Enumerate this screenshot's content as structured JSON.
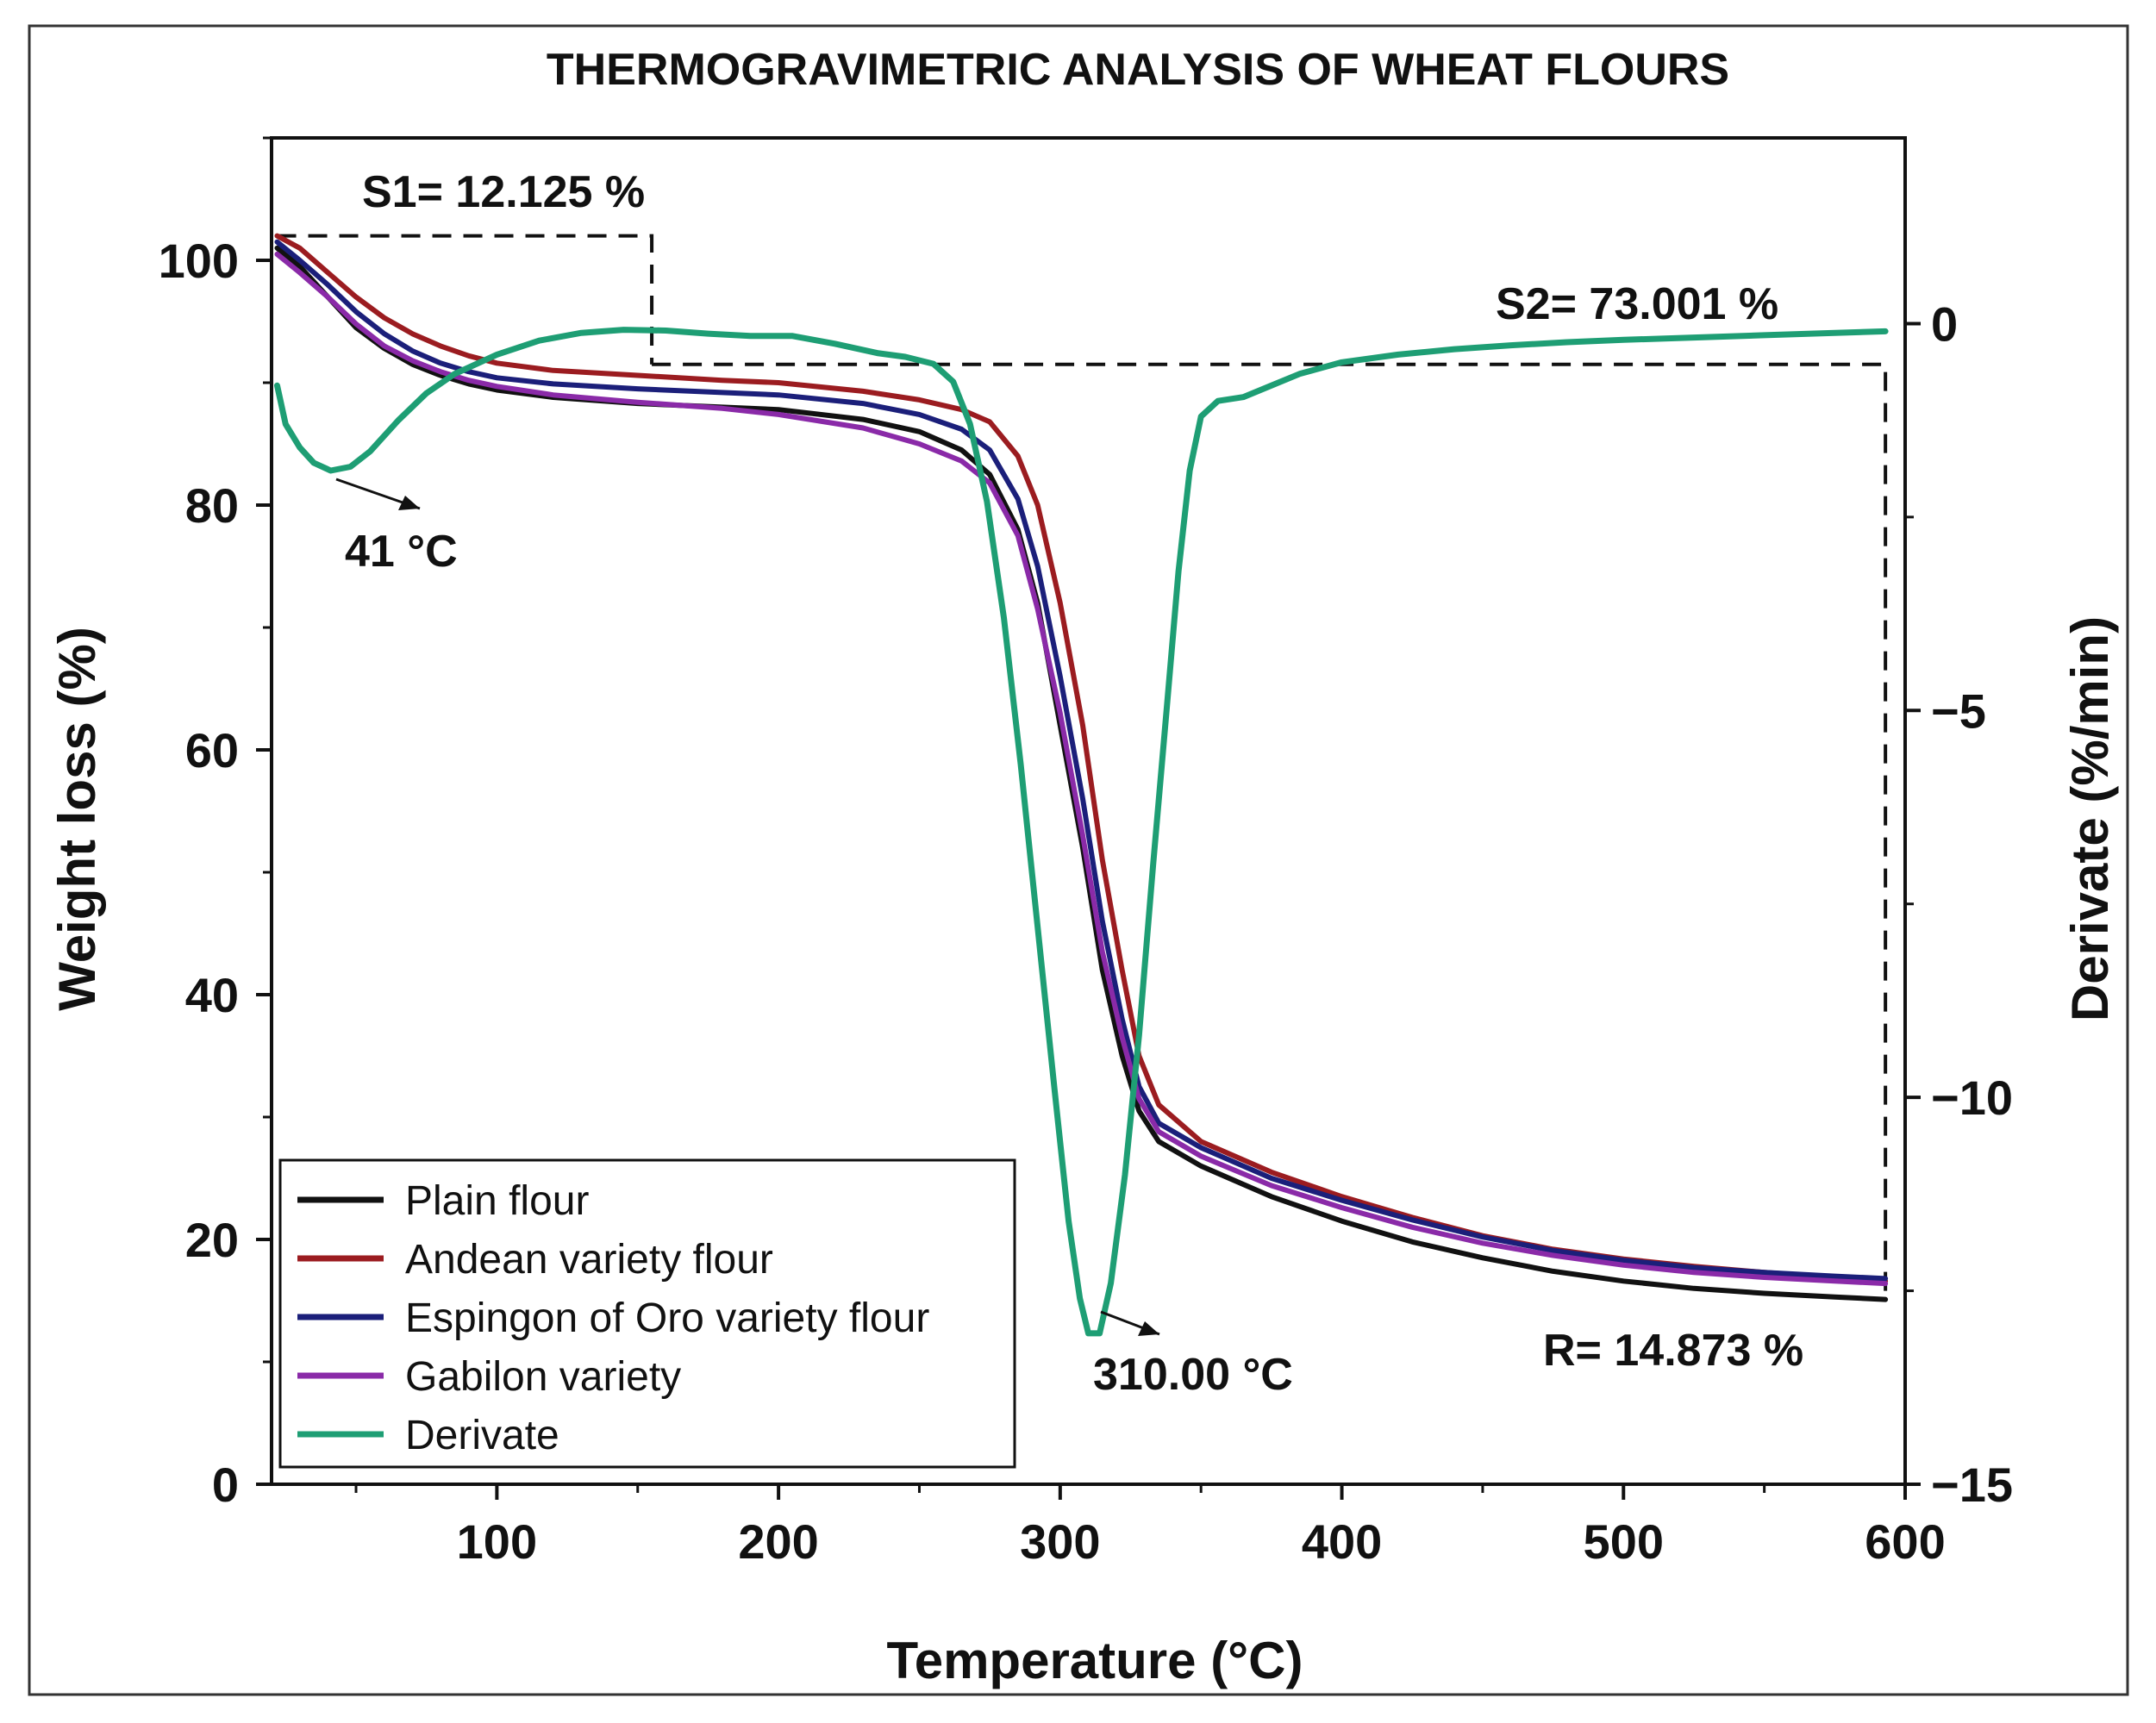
{
  "chart_data": {
    "type": "line",
    "title": "THERMOGRAVIMETRIC ANALYSIS OF WHEAT FLOURS",
    "xlabel": "Temperature (°C)",
    "ylabel": "Weight loss (%)",
    "y2label": "Derivate (%/min)",
    "xlim": [
      20,
      600
    ],
    "ylim": [
      0,
      110
    ],
    "y2lim": [
      -15,
      2.4
    ],
    "x_ticks": [
      100,
      200,
      300,
      400,
      500,
      600
    ],
    "y_ticks": [
      0,
      20,
      40,
      60,
      80,
      100
    ],
    "y2_ticks": [
      -15,
      -10,
      -5,
      0
    ],
    "x_tick_labels": [
      "100",
      "200",
      "300",
      "400",
      "500",
      "600"
    ],
    "y_tick_labels": [
      "0",
      "20",
      "40",
      "60",
      "80",
      "100"
    ],
    "y2_tick_labels": [
      "−15",
      "−10",
      "−5",
      "0"
    ],
    "legend_position": "bottom-left",
    "series": [
      {
        "name": "Plain flour",
        "axis": "left",
        "color": "#111111",
        "points": [
          [
            22,
            101
          ],
          [
            30,
            99.5
          ],
          [
            40,
            97
          ],
          [
            50,
            94.5
          ],
          [
            60,
            92.8
          ],
          [
            70,
            91.5
          ],
          [
            80,
            90.6
          ],
          [
            90,
            89.9
          ],
          [
            100,
            89.4
          ],
          [
            120,
            88.8
          ],
          [
            150,
            88.3
          ],
          [
            180,
            88
          ],
          [
            200,
            87.8
          ],
          [
            230,
            87
          ],
          [
            250,
            86
          ],
          [
            265,
            84.5
          ],
          [
            275,
            82.5
          ],
          [
            285,
            78
          ],
          [
            292,
            72
          ],
          [
            300,
            62
          ],
          [
            308,
            52
          ],
          [
            315,
            42
          ],
          [
            322,
            35
          ],
          [
            328,
            30.5
          ],
          [
            335,
            28
          ],
          [
            350,
            26
          ],
          [
            375,
            23.5
          ],
          [
            400,
            21.5
          ],
          [
            425,
            19.8
          ],
          [
            450,
            18.5
          ],
          [
            475,
            17.4
          ],
          [
            500,
            16.6
          ],
          [
            525,
            16
          ],
          [
            550,
            15.6
          ],
          [
            575,
            15.3
          ],
          [
            593,
            15.1
          ]
        ]
      },
      {
        "name": "Andean variety flour",
        "axis": "left",
        "color": "#9b1c20",
        "points": [
          [
            22,
            102
          ],
          [
            30,
            101
          ],
          [
            40,
            99
          ],
          [
            50,
            97
          ],
          [
            60,
            95.3
          ],
          [
            70,
            94
          ],
          [
            80,
            93
          ],
          [
            90,
            92.2
          ],
          [
            100,
            91.6
          ],
          [
            120,
            91
          ],
          [
            150,
            90.6
          ],
          [
            180,
            90.2
          ],
          [
            200,
            90
          ],
          [
            230,
            89.3
          ],
          [
            250,
            88.6
          ],
          [
            265,
            87.8
          ],
          [
            275,
            86.8
          ],
          [
            285,
            84
          ],
          [
            292,
            80
          ],
          [
            300,
            72
          ],
          [
            308,
            62
          ],
          [
            315,
            51
          ],
          [
            322,
            42
          ],
          [
            328,
            35
          ],
          [
            335,
            31
          ],
          [
            350,
            28
          ],
          [
            375,
            25.5
          ],
          [
            400,
            23.5
          ],
          [
            425,
            21.8
          ],
          [
            450,
            20.3
          ],
          [
            475,
            19.2
          ],
          [
            500,
            18.4
          ],
          [
            525,
            17.8
          ],
          [
            550,
            17.3
          ],
          [
            575,
            16.9
          ],
          [
            593,
            16.6
          ]
        ]
      },
      {
        "name": "Espingon of Oro variety flour",
        "axis": "left",
        "color": "#1b1f7a",
        "points": [
          [
            22,
            101.5
          ],
          [
            30,
            100
          ],
          [
            40,
            98
          ],
          [
            50,
            95.8
          ],
          [
            60,
            94
          ],
          [
            70,
            92.6
          ],
          [
            80,
            91.6
          ],
          [
            90,
            90.9
          ],
          [
            100,
            90.4
          ],
          [
            120,
            89.9
          ],
          [
            150,
            89.5
          ],
          [
            180,
            89.2
          ],
          [
            200,
            89
          ],
          [
            230,
            88.3
          ],
          [
            250,
            87.4
          ],
          [
            265,
            86.2
          ],
          [
            275,
            84.5
          ],
          [
            285,
            80.5
          ],
          [
            292,
            75
          ],
          [
            300,
            66
          ],
          [
            308,
            56
          ],
          [
            315,
            46
          ],
          [
            322,
            38
          ],
          [
            328,
            32.5
          ],
          [
            335,
            29.5
          ],
          [
            350,
            27.5
          ],
          [
            375,
            25
          ],
          [
            400,
            23.2
          ],
          [
            425,
            21.6
          ],
          [
            450,
            20.2
          ],
          [
            475,
            19.1
          ],
          [
            500,
            18.3
          ],
          [
            525,
            17.7
          ],
          [
            550,
            17.3
          ],
          [
            575,
            17
          ],
          [
            593,
            16.8
          ]
        ]
      },
      {
        "name": "Gabilon variety",
        "axis": "left",
        "color": "#8a2aa8",
        "points": [
          [
            22,
            100.5
          ],
          [
            30,
            99
          ],
          [
            40,
            97
          ],
          [
            50,
            94.8
          ],
          [
            60,
            93
          ],
          [
            70,
            91.8
          ],
          [
            80,
            90.9
          ],
          [
            90,
            90.2
          ],
          [
            100,
            89.7
          ],
          [
            120,
            89
          ],
          [
            150,
            88.4
          ],
          [
            180,
            87.9
          ],
          [
            200,
            87.4
          ],
          [
            230,
            86.3
          ],
          [
            250,
            85
          ],
          [
            265,
            83.6
          ],
          [
            275,
            81.8
          ],
          [
            285,
            77.5
          ],
          [
            292,
            71.5
          ],
          [
            300,
            63
          ],
          [
            308,
            53
          ],
          [
            315,
            43.5
          ],
          [
            322,
            36.5
          ],
          [
            328,
            31.5
          ],
          [
            335,
            28.8
          ],
          [
            350,
            26.8
          ],
          [
            375,
            24.4
          ],
          [
            400,
            22.6
          ],
          [
            425,
            21
          ],
          [
            450,
            19.7
          ],
          [
            475,
            18.7
          ],
          [
            500,
            17.9
          ],
          [
            525,
            17.3
          ],
          [
            550,
            16.9
          ],
          [
            575,
            16.6
          ],
          [
            593,
            16.4
          ]
        ]
      },
      {
        "name": "Derivate",
        "axis": "right",
        "color": "#1e9e74",
        "points": [
          [
            22,
            -0.8
          ],
          [
            25,
            -1.3
          ],
          [
            30,
            -1.6
          ],
          [
            35,
            -1.8
          ],
          [
            41,
            -1.9
          ],
          [
            48,
            -1.85
          ],
          [
            55,
            -1.65
          ],
          [
            65,
            -1.25
          ],
          [
            75,
            -0.9
          ],
          [
            85,
            -0.65
          ],
          [
            100,
            -0.4
          ],
          [
            115,
            -0.22
          ],
          [
            130,
            -0.12
          ],
          [
            145,
            -0.08
          ],
          [
            160,
            -0.09
          ],
          [
            175,
            -0.13
          ],
          [
            190,
            -0.16
          ],
          [
            205,
            -0.16
          ],
          [
            220,
            -0.26
          ],
          [
            235,
            -0.38
          ],
          [
            245,
            -0.43
          ],
          [
            255,
            -0.52
          ],
          [
            262,
            -0.75
          ],
          [
            268,
            -1.3
          ],
          [
            274,
            -2.3
          ],
          [
            280,
            -3.8
          ],
          [
            286,
            -5.7
          ],
          [
            292,
            -7.8
          ],
          [
            298,
            -9.9
          ],
          [
            303,
            -11.6
          ],
          [
            307,
            -12.6
          ],
          [
            310,
            -13.05
          ],
          [
            314,
            -13.05
          ],
          [
            318,
            -12.4
          ],
          [
            323,
            -11
          ],
          [
            328,
            -9.2
          ],
          [
            333,
            -7
          ],
          [
            338,
            -4.9
          ],
          [
            342,
            -3.2
          ],
          [
            346,
            -1.9
          ],
          [
            350,
            -1.2
          ],
          [
            356,
            -1.0
          ],
          [
            365,
            -0.95
          ],
          [
            375,
            -0.8
          ],
          [
            385,
            -0.65
          ],
          [
            400,
            -0.5
          ],
          [
            420,
            -0.4
          ],
          [
            440,
            -0.33
          ],
          [
            460,
            -0.28
          ],
          [
            480,
            -0.24
          ],
          [
            500,
            -0.21
          ],
          [
            525,
            -0.18
          ],
          [
            550,
            -0.15
          ],
          [
            575,
            -0.12
          ],
          [
            593,
            -0.1
          ]
        ]
      }
    ],
    "annotations": {
      "s1": "S1= 12.125 %",
      "s2": "S2= 73.001 %",
      "r": "R= 14.873 %",
      "peak1": "41 °C",
      "peak2": "310.00 °C"
    },
    "reference_boxes": {
      "s1_box": {
        "x_from": 22,
        "x_to": 155,
        "y_top": 102,
        "y_bottom": 91.5
      },
      "s2_box": {
        "x_from": 155,
        "x_to": 593,
        "y_top": 91.5,
        "y_bottom": 15.1
      }
    }
  }
}
